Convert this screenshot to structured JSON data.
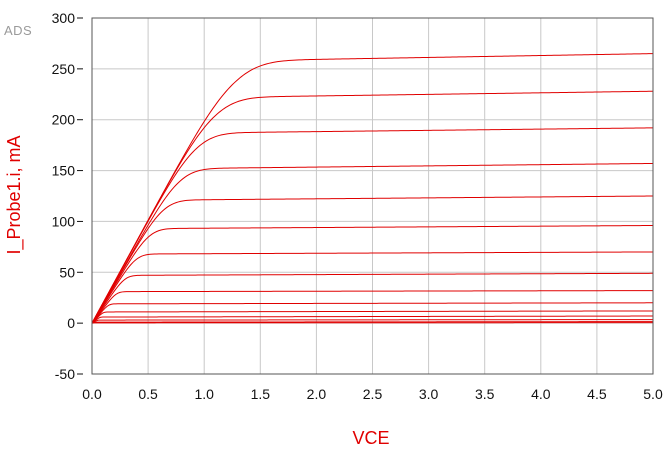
{
  "watermark": "ADS",
  "chart_data": {
    "type": "line",
    "title": "",
    "xlabel": "VCE",
    "ylabel": "I_Probe1.i, mA",
    "xlim": [
      0,
      5
    ],
    "ylim": [
      -50,
      300
    ],
    "x_ticks": [
      0,
      0.5,
      1,
      1.5,
      2,
      2.5,
      3,
      3.5,
      4,
      4.5,
      5
    ],
    "x_tick_labels": [
      "0.0",
      "0.5",
      "1.0",
      "1.5",
      "2.0",
      "2.5",
      "3.0",
      "3.5",
      "4.0",
      "4.5",
      "5.0"
    ],
    "y_ticks": [
      -50,
      0,
      50,
      100,
      150,
      200,
      250,
      300
    ],
    "y_tick_labels": [
      "-50",
      "0",
      "50",
      "100",
      "150",
      "200",
      "250",
      "300"
    ],
    "grid": true,
    "line_color": "#e00000",
    "series": [
      {
        "knee_vce": 1.3,
        "i_sat": 258,
        "i_end": 265
      },
      {
        "knee_vce": 1.12,
        "i_sat": 222,
        "i_end": 228
      },
      {
        "knee_vce": 0.95,
        "i_sat": 187,
        "i_end": 192
      },
      {
        "knee_vce": 0.8,
        "i_sat": 152,
        "i_end": 157
      },
      {
        "knee_vce": 0.65,
        "i_sat": 121,
        "i_end": 125
      },
      {
        "knee_vce": 0.52,
        "i_sat": 93,
        "i_end": 96
      },
      {
        "knee_vce": 0.4,
        "i_sat": 68,
        "i_end": 70
      },
      {
        "knee_vce": 0.3,
        "i_sat": 47,
        "i_end": 49
      },
      {
        "knee_vce": 0.22,
        "i_sat": 31,
        "i_end": 32
      },
      {
        "knee_vce": 0.15,
        "i_sat": 19,
        "i_end": 20
      },
      {
        "knee_vce": 0.1,
        "i_sat": 11,
        "i_end": 12
      },
      {
        "knee_vce": 0.07,
        "i_sat": 6,
        "i_end": 7
      },
      {
        "knee_vce": 0.05,
        "i_sat": 3,
        "i_end": 3.5
      },
      {
        "knee_vce": 0.03,
        "i_sat": 1,
        "i_end": 1.5
      },
      {
        "knee_vce": 0.02,
        "i_sat": 0.3,
        "i_end": 0.5
      }
    ]
  }
}
